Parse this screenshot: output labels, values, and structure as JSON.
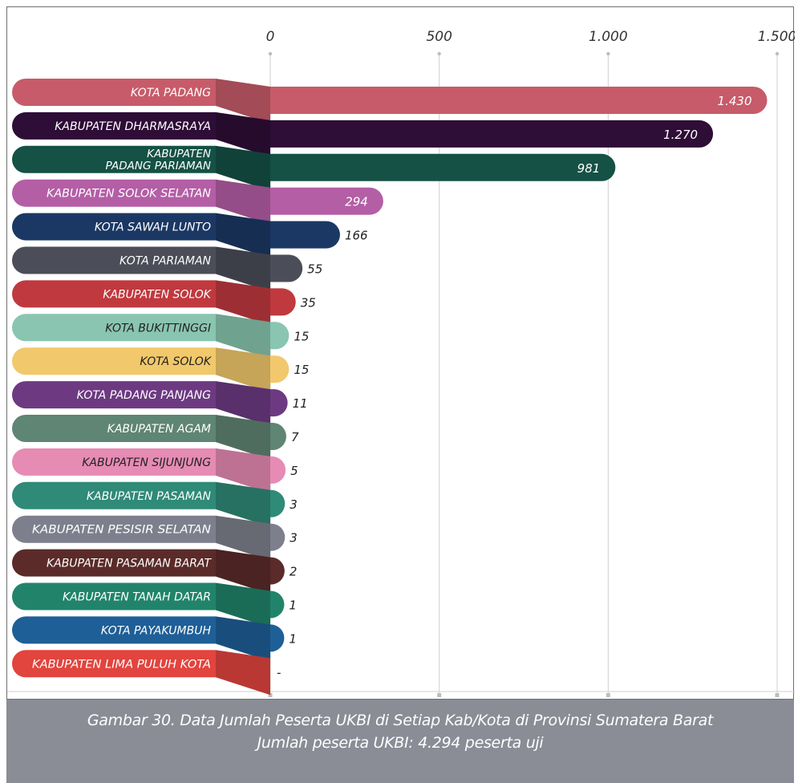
{
  "chart_data": {
    "type": "bar",
    "orientation": "horizontal",
    "categories": [
      "KOTA PADANG",
      "KABUPATEN DHARMASRAYA",
      "KABUPATEN PADANG PARIAMAN",
      "KABUPATEN SOLOK SELATAN",
      "KOTA SAWAH LUNTO",
      "KOTA PARIAMAN",
      "KABUPATEN SOLOK",
      "KOTA BUKITTINGGI",
      "KOTA SOLOK",
      "KOTA PADANG PANJANG",
      "KABUPATEN AGAM",
      "KABUPATEN SIJUNJUNG",
      "KABUPATEN PASAMAN",
      "KABUPATEN PESISIR SELATAN",
      "KABUPATEN PASAMAN BARAT",
      "KABUPATEN TANAH DATAR",
      "KOTA PAYAKUMBUH",
      "KABUPATEN LIMA PULUH KOTA"
    ],
    "values": [
      1430,
      1270,
      981,
      294,
      166,
      55,
      35,
      15,
      15,
      11,
      7,
      5,
      3,
      3,
      2,
      1,
      1,
      0
    ],
    "value_labels": [
      "1.430",
      "1.270",
      "981",
      "294",
      "166",
      "55",
      "35",
      "15",
      "15",
      "11",
      "7",
      "5",
      "3",
      "3",
      "2",
      "1",
      "1",
      "-"
    ],
    "colors": [
      "#c75b69",
      "#2e0d37",
      "#155145",
      "#b45ea6",
      "#1b3864",
      "#4b4d58",
      "#c0393f",
      "#89c5b0",
      "#f1c86b",
      "#6d3a82",
      "#5f8574",
      "#e68bb4",
      "#2f8a77",
      "#7d808c",
      "#5a2b29",
      "#21846a",
      "#1f5f97",
      "#e2443e"
    ],
    "xlim": [
      0,
      1500
    ],
    "xticks": [
      "0",
      "500",
      "1.000",
      "1.500"
    ],
    "xtick_values": [
      0,
      500,
      1000,
      1500
    ],
    "grid": true
  },
  "caption": {
    "line1": "Gambar 30. Data Jumlah Peserta UKBI di Setiap Kab/Kota di Provinsi Sumatera Barat",
    "line2": "Jumlah peserta UKBI: 4.294 peserta uji"
  }
}
